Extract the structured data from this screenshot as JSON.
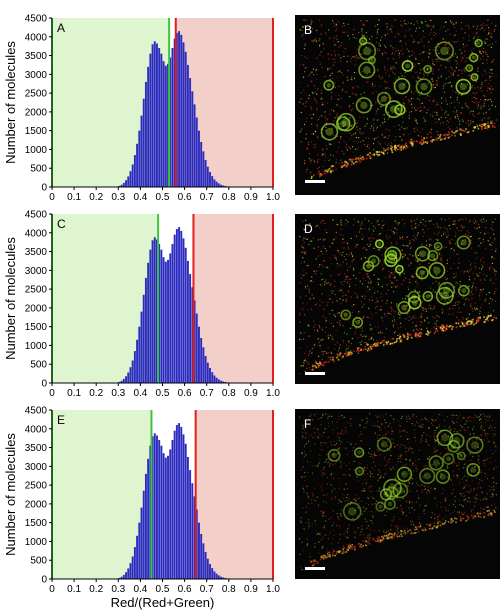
{
  "chart_data": [
    {
      "type": "bar",
      "panel_label": "A",
      "xlabel": "",
      "ylabel": "Number of molecules",
      "xlim": [
        0,
        1
      ],
      "ylim": [
        0,
        4500
      ],
      "xticks": [
        0,
        0.1,
        0.2,
        0.3,
        0.4,
        0.5,
        0.6,
        0.7,
        0.8,
        0.9,
        1.0
      ],
      "xtick_labels": [
        "0",
        "0.1",
        "0.2",
        "0.3",
        "0.4",
        "0.5",
        "0.6",
        "0.7",
        "0.8",
        "0.9",
        "1.0"
      ],
      "yticks": [
        0,
        500,
        1000,
        1500,
        2000,
        2500,
        3000,
        3500,
        4000,
        4500
      ],
      "ytick_labels": [
        "0",
        "500",
        "1000",
        "1500",
        "2000",
        "2500",
        "3000",
        "3500",
        "4000",
        "4500"
      ],
      "green_threshold": 0.53,
      "red_threshold": 0.56,
      "green_region": [
        0,
        0.53
      ],
      "red_region": [
        0.56,
        1.0
      ],
      "bar_color": "#2b2bbf",
      "green_color": "#dff5cf",
      "red_color": "#f3cfca",
      "grid": false,
      "bins": [
        0.3,
        0.31,
        0.32,
        0.33,
        0.34,
        0.35,
        0.36,
        0.37,
        0.38,
        0.39,
        0.4,
        0.41,
        0.42,
        0.43,
        0.44,
        0.45,
        0.46,
        0.47,
        0.48,
        0.49,
        0.5,
        0.51,
        0.52,
        0.53,
        0.54,
        0.55,
        0.56,
        0.57,
        0.58,
        0.59,
        0.6,
        0.61,
        0.62,
        0.63,
        0.64,
        0.65,
        0.66,
        0.67,
        0.68,
        0.69,
        0.7,
        0.71,
        0.72,
        0.73,
        0.74,
        0.75,
        0.76,
        0.77,
        0.78,
        0.79,
        0.8,
        0.81,
        0.82,
        0.83,
        0.84,
        0.85
      ],
      "values": [
        30,
        60,
        110,
        180,
        280,
        420,
        600,
        850,
        1150,
        1500,
        1900,
        2350,
        2800,
        3200,
        3550,
        3800,
        3880,
        3820,
        3700,
        3550,
        3350,
        3230,
        3280,
        3450,
        3700,
        3950,
        4100,
        4150,
        4050,
        3850,
        3600,
        3250,
        2900,
        2550,
        2200,
        1850,
        1500,
        1200,
        950,
        720,
        540,
        400,
        290,
        200,
        140,
        95,
        60,
        40,
        25,
        15,
        10,
        6,
        4,
        2,
        1,
        1
      ]
    },
    {
      "type": "bar",
      "panel_label": "C",
      "xlabel": "",
      "ylabel": "Number of molecules",
      "xlim": [
        0,
        1
      ],
      "ylim": [
        0,
        4500
      ],
      "xticks": [
        0,
        0.1,
        0.2,
        0.3,
        0.4,
        0.5,
        0.6,
        0.7,
        0.8,
        0.9,
        1.0
      ],
      "xtick_labels": [
        "0",
        "0.1",
        "0.2",
        "0.3",
        "0.4",
        "0.5",
        "0.6",
        "0.7",
        "0.8",
        "0.9",
        "1.0"
      ],
      "yticks": [
        0,
        500,
        1000,
        1500,
        2000,
        2500,
        3000,
        3500,
        4000,
        4500
      ],
      "ytick_labels": [
        "0",
        "500",
        "1000",
        "1500",
        "2000",
        "2500",
        "3000",
        "3500",
        "4000",
        "4500"
      ],
      "green_threshold": 0.48,
      "red_threshold": 0.64,
      "green_region": [
        0,
        0.48
      ],
      "red_region": [
        0.64,
        1.0
      ],
      "bar_color": "#2b2bbf",
      "green_color": "#dff5cf",
      "red_color": "#f3cfca",
      "grid": false,
      "bins": [
        0.3,
        0.31,
        0.32,
        0.33,
        0.34,
        0.35,
        0.36,
        0.37,
        0.38,
        0.39,
        0.4,
        0.41,
        0.42,
        0.43,
        0.44,
        0.45,
        0.46,
        0.47,
        0.48,
        0.49,
        0.5,
        0.51,
        0.52,
        0.53,
        0.54,
        0.55,
        0.56,
        0.57,
        0.58,
        0.59,
        0.6,
        0.61,
        0.62,
        0.63,
        0.64,
        0.65,
        0.66,
        0.67,
        0.68,
        0.69,
        0.7,
        0.71,
        0.72,
        0.73,
        0.74,
        0.75,
        0.76,
        0.77,
        0.78,
        0.79,
        0.8,
        0.81,
        0.82,
        0.83,
        0.84,
        0.85
      ],
      "values": [
        30,
        60,
        110,
        180,
        280,
        420,
        600,
        850,
        1150,
        1500,
        1900,
        2350,
        2800,
        3200,
        3550,
        3800,
        3880,
        3820,
        3700,
        3550,
        3350,
        3230,
        3280,
        3450,
        3700,
        3950,
        4100,
        4150,
        4050,
        3850,
        3600,
        3250,
        2900,
        2550,
        2200,
        1850,
        1500,
        1200,
        950,
        720,
        540,
        400,
        290,
        200,
        140,
        95,
        60,
        40,
        25,
        15,
        10,
        6,
        4,
        2,
        1,
        1
      ]
    },
    {
      "type": "bar",
      "panel_label": "E",
      "xlabel": "Red/(Red+Green)",
      "ylabel": "Number of molecules",
      "xlim": [
        0,
        1
      ],
      "ylim": [
        0,
        4500
      ],
      "xticks": [
        0,
        0.1,
        0.2,
        0.3,
        0.4,
        0.5,
        0.6,
        0.7,
        0.8,
        0.9,
        1.0
      ],
      "xtick_labels": [
        "0",
        "0.1",
        "0.2",
        "0.3",
        "0.4",
        "0.5",
        "0.6",
        "0.7",
        "0.8",
        "0.9",
        "1.0"
      ],
      "yticks": [
        0,
        500,
        1000,
        1500,
        2000,
        2500,
        3000,
        3500,
        4000,
        4500
      ],
      "ytick_labels": [
        "0",
        "500",
        "1000",
        "1500",
        "2000",
        "2500",
        "3000",
        "3500",
        "4000",
        "4500"
      ],
      "green_threshold": 0.45,
      "red_threshold": 0.65,
      "green_region": [
        0,
        0.45
      ],
      "red_region": [
        0.65,
        1.0
      ],
      "bar_color": "#2b2bbf",
      "green_color": "#dff5cf",
      "red_color": "#f3cfca",
      "grid": false,
      "bins": [
        0.3,
        0.31,
        0.32,
        0.33,
        0.34,
        0.35,
        0.36,
        0.37,
        0.38,
        0.39,
        0.4,
        0.41,
        0.42,
        0.43,
        0.44,
        0.45,
        0.46,
        0.47,
        0.48,
        0.49,
        0.5,
        0.51,
        0.52,
        0.53,
        0.54,
        0.55,
        0.56,
        0.57,
        0.58,
        0.59,
        0.6,
        0.61,
        0.62,
        0.63,
        0.64,
        0.65,
        0.66,
        0.67,
        0.68,
        0.69,
        0.7,
        0.71,
        0.72,
        0.73,
        0.74,
        0.75,
        0.76,
        0.77,
        0.78,
        0.79,
        0.8,
        0.81,
        0.82,
        0.83,
        0.84,
        0.85
      ],
      "values": [
        30,
        60,
        110,
        180,
        280,
        420,
        600,
        850,
        1150,
        1500,
        1900,
        2350,
        2800,
        3200,
        3550,
        3800,
        3880,
        3820,
        3700,
        3550,
        3350,
        3230,
        3280,
        3450,
        3700,
        3950,
        4100,
        4150,
        4050,
        3850,
        3600,
        3250,
        2900,
        2550,
        2200,
        1850,
        1500,
        1200,
        950,
        720,
        540,
        400,
        290,
        200,
        140,
        95,
        60,
        40,
        25,
        15,
        10,
        6,
        4,
        2,
        1,
        1
      ]
    }
  ],
  "images": [
    {
      "label": "B",
      "scale_bar": true
    },
    {
      "label": "D",
      "scale_bar": true
    },
    {
      "label": "F",
      "scale_bar": true
    }
  ],
  "image_colors": {
    "background": "#050505",
    "green": "#9be22a",
    "red": "#e0301e",
    "yellow": "#e7d63a"
  }
}
